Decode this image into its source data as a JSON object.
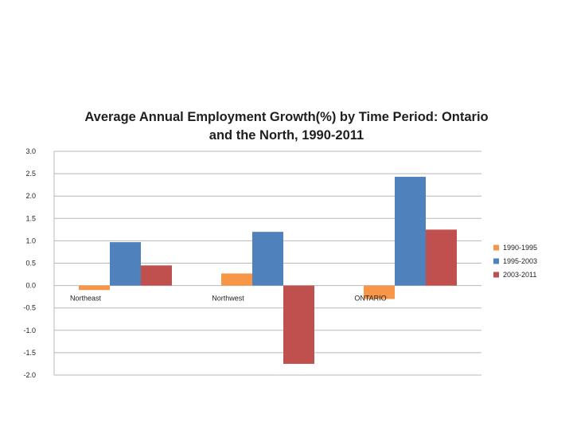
{
  "chart_data": {
    "type": "bar",
    "title": "Average Annual Employment Growth(%) by Time Period: Ontario and the North, 1990-2011",
    "title_lines": [
      "Average Annual Employment Growth(%) by Time Period: Ontario",
      "and the North, 1990-2011"
    ],
    "xlabel": "",
    "ylabel": "",
    "categories": [
      "Northeast",
      "Northwest",
      "ONTARIO"
    ],
    "series": [
      {
        "name": "1990-1995",
        "color": "#F79646",
        "values": [
          -0.1,
          0.27,
          -0.3
        ]
      },
      {
        "name": "1995-2003",
        "color": "#4F81BD",
        "values": [
          0.97,
          1.2,
          2.43
        ]
      },
      {
        "name": "2003-2011",
        "color": "#C0504D",
        "values": [
          0.45,
          -1.75,
          1.25
        ]
      }
    ],
    "ylim": [
      -2.0,
      3.0
    ],
    "yticks": [
      "3.0",
      "2.5",
      "2.0",
      "1.5",
      "1.0",
      "0.5",
      "0.0",
      "-0.5",
      "-1.0",
      "-1.5",
      "-2.0"
    ],
    "grid": true,
    "legend_position": "right"
  }
}
